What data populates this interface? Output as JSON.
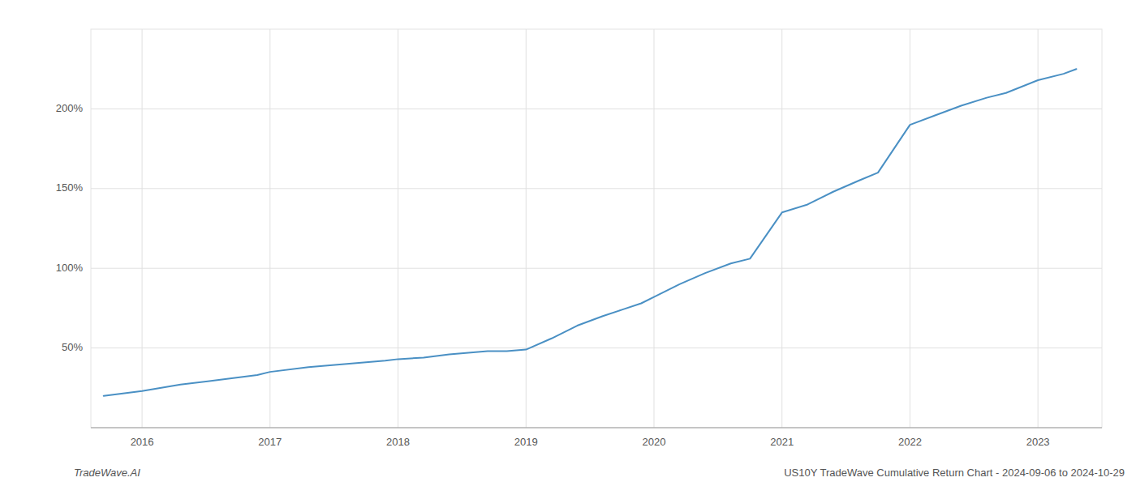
{
  "chart_data": {
    "type": "line",
    "title": "US10Y TradeWave Cumulative Return Chart - 2024-09-06 to 2024-10-29",
    "annotations": [
      "TradeWave.AI"
    ],
    "color": "#4a90c4",
    "grid": true,
    "xlim": [
      2015.6,
      2023.5
    ],
    "ylim": [
      0,
      250
    ],
    "xticks": [
      2016,
      2017,
      2018,
      2019,
      2020,
      2021,
      2022,
      2023
    ],
    "yticks": [
      {
        "value": 50,
        "label": "50%"
      },
      {
        "value": 100,
        "label": "100%"
      },
      {
        "value": 150,
        "label": "150%"
      },
      {
        "value": 200,
        "label": "200%"
      }
    ],
    "x": [
      2015.7,
      2016.0,
      2016.3,
      2016.6,
      2016.9,
      2017.0,
      2017.3,
      2017.6,
      2017.9,
      2018.0,
      2018.2,
      2018.4,
      2018.55,
      2018.7,
      2018.85,
      2019.0,
      2019.2,
      2019.4,
      2019.6,
      2019.75,
      2019.9,
      2020.0,
      2020.2,
      2020.4,
      2020.6,
      2020.75,
      2021.0,
      2021.2,
      2021.4,
      2021.6,
      2021.75,
      2022.0,
      2022.2,
      2022.4,
      2022.6,
      2022.75,
      2023.0,
      2023.2,
      2023.3
    ],
    "values": [
      20,
      23,
      27,
      30,
      33,
      35,
      38,
      40,
      42,
      43,
      44,
      46,
      47,
      48,
      48,
      49,
      56,
      64,
      70,
      74,
      78,
      82,
      90,
      97,
      103,
      106,
      135,
      140,
      148,
      155,
      160,
      190,
      196,
      202,
      207,
      210,
      218,
      222,
      225
    ]
  }
}
